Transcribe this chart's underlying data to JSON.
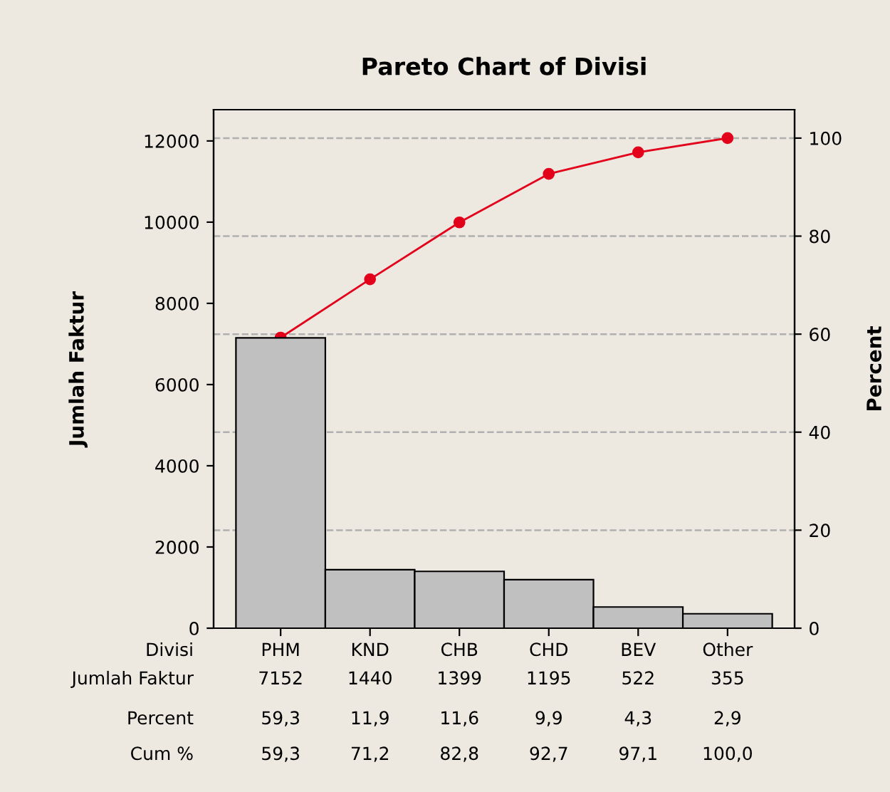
{
  "chart_data": {
    "type": "bar",
    "title": "Pareto Chart of Divisi",
    "xlabel": "Divisi",
    "ylabel": "Jumlah Faktur",
    "y2label": "Percent",
    "categories": [
      "PHM",
      "KND",
      "CHB",
      "CHD",
      "BEV",
      "Other"
    ],
    "series": [
      {
        "color": "#c0c0c0",
        "values": [
          7152,
          1440,
          1399,
          1195,
          522,
          355
        ],
        "value_labels": [
          "7152",
          "1440",
          "1399",
          "1195",
          "522",
          "355"
        ]
      },
      {
        "type": "line",
        "axis": "y2",
        "color": "#e3001b",
        "values": [
          59.3,
          71.2,
          82.8,
          92.7,
          97.1,
          100.0
        ],
        "value_labels": [
          "59,3",
          "71,2",
          "82,8",
          "92,7",
          "97,1",
          "100,0"
        ]
      }
    ],
    "annotations": [
      "Jumlah Faktur",
      "Cum %",
      "Percent",
      "59,3",
      "11,9",
      "11,6",
      "9,9",
      "4,3",
      "2,9"
    ],
    "ylim": [
      0,
      12770
    ],
    "yticks": [
      0,
      2000,
      4000,
      6000,
      8000,
      10000,
      12000
    ],
    "y2lim": [
      0,
      105.8
    ],
    "y2ticks": [
      0,
      20,
      40,
      60,
      80,
      100
    ],
    "grid": "y",
    "marker": "circle",
    "line_style": "solid",
    "legend": false
  }
}
